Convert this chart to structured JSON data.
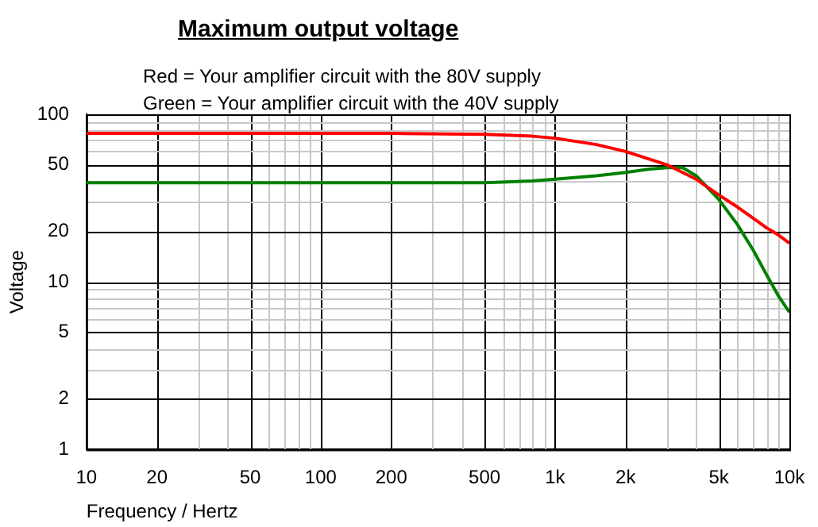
{
  "chart_data": {
    "type": "line",
    "title": "Maximum output voltage",
    "annotations": [
      "Red = Your amplifier circuit with the 80V supply",
      "Green = Your amplifier circuit with the 40V supply"
    ],
    "xlabel": "Frequency / Hertz",
    "ylabel": "Voltage",
    "log": "xy",
    "grid": true,
    "legend": false,
    "marker": "none",
    "line_style": "solid",
    "xlim": [
      10,
      10000
    ],
    "ylim": [
      1,
      100
    ],
    "xticks": [
      10,
      20,
      50,
      100,
      200,
      500,
      {
        "value": 1000,
        "label": "1k"
      },
      {
        "value": 2000,
        "label": "2k"
      },
      {
        "value": 5000,
        "label": "5k"
      },
      {
        "value": 10000,
        "label": "10k"
      }
    ],
    "yticks": [
      1,
      2,
      5,
      10,
      20,
      50,
      100
    ],
    "series": [
      {
        "color": "#ff0000",
        "x": [
          10,
          200,
          500,
          800,
          1000,
          1500,
          2000,
          3000,
          4000,
          5000,
          6000,
          7000,
          8000,
          9000,
          10000
        ],
        "values": [
          77,
          77,
          76,
          74,
          72,
          66,
          60,
          50,
          41,
          33,
          28,
          24,
          21,
          19,
          17
        ]
      },
      {
        "color": "#008000",
        "x": [
          10,
          500,
          800,
          1000,
          1500,
          2000,
          2500,
          3000,
          3500,
          4000,
          5000,
          6000,
          7000,
          8000,
          9000,
          10000
        ],
        "values": [
          39,
          39,
          40,
          41,
          43,
          45,
          47,
          48,
          48,
          43,
          31,
          22,
          15.5,
          11,
          8.2,
          6.6
        ]
      }
    ]
  }
}
